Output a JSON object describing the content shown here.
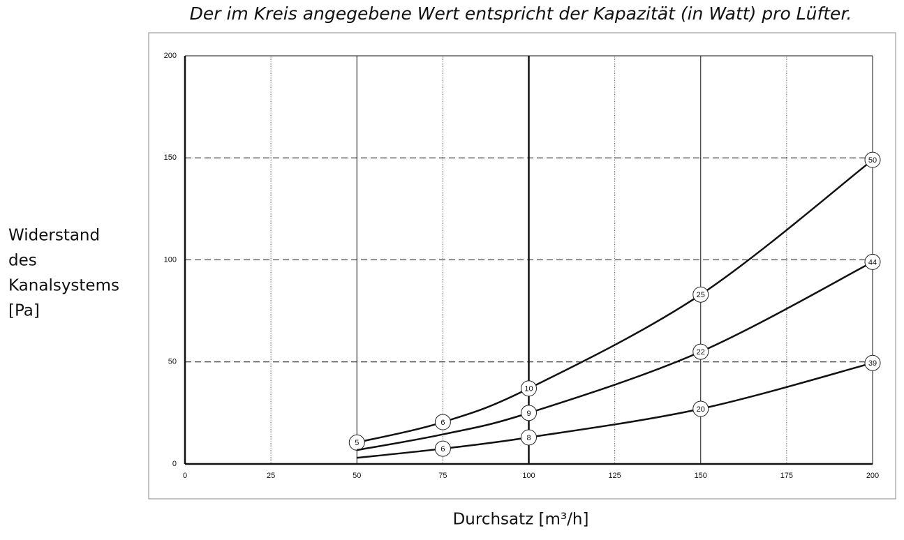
{
  "chart_data": {
    "type": "line",
    "title": "Der im Kreis angegebene Wert entspricht der Kapazität (in Watt) pro Lüfter.",
    "x_label": "Durchsatz [m³/h]",
    "y_label": [
      "Widerstand",
      "des",
      "Kanalsystems",
      "[Pa]"
    ],
    "xlim": [
      0,
      200
    ],
    "xticks": [
      0,
      25,
      50,
      75,
      100,
      125,
      150,
      175,
      200
    ],
    "ylim": [
      0,
      200
    ],
    "yticks": [
      0,
      50,
      100,
      150,
      200
    ],
    "grid": true,
    "color": "#111111",
    "series": [
      {
        "x": [
          50,
          75,
          100,
          150,
          200
        ],
        "values": [
          10.5,
          20.5,
          37,
          83,
          149
        ],
        "watts": [
          5,
          6,
          10,
          25,
          50
        ]
      },
      {
        "x": [
          50,
          75,
          100,
          150,
          200
        ],
        "values": [
          6.8,
          14.5,
          25,
          55,
          99
        ],
        "watts": [
          null,
          null,
          9,
          22,
          44
        ]
      },
      {
        "x": [
          50,
          75,
          100,
          150,
          200
        ],
        "values": [
          3,
          7.5,
          13,
          27,
          49.5
        ],
        "watts": [
          null,
          6,
          8,
          20,
          39
        ]
      }
    ]
  }
}
